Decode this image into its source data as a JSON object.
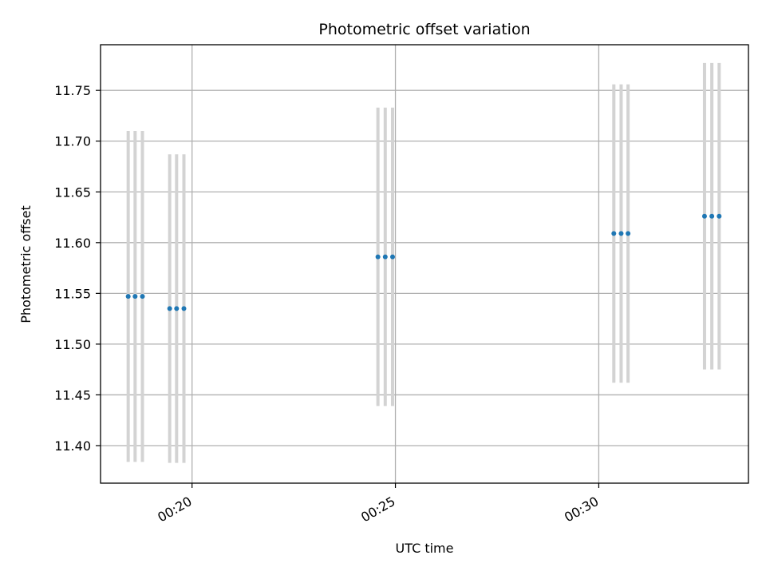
{
  "chart_data": {
    "type": "scatter",
    "title": "Photometric offset variation",
    "xlabel": "UTC time",
    "ylabel": "Photometric offset",
    "grid": true,
    "x_unit": "minutes after 00:00 UTC",
    "xlim": [
      17.75,
      33.68
    ],
    "ylim": [
      11.363,
      11.795
    ],
    "xticks": [
      {
        "value": 20,
        "label": "00:20"
      },
      {
        "value": 25,
        "label": "00:25"
      },
      {
        "value": 30,
        "label": "00:30"
      }
    ],
    "yticks": [
      {
        "value": 11.4,
        "label": "11.40"
      },
      {
        "value": 11.45,
        "label": "11.45"
      },
      {
        "value": 11.5,
        "label": "11.50"
      },
      {
        "value": 11.55,
        "label": "11.55"
      },
      {
        "value": 11.6,
        "label": "11.60"
      },
      {
        "value": 11.65,
        "label": "11.65"
      },
      {
        "value": 11.7,
        "label": "11.70"
      },
      {
        "value": 11.75,
        "label": "11.75"
      }
    ],
    "point_color": "#1f77b4",
    "errorbar_color": "#d3d3d3",
    "points": [
      {
        "x": 18.43,
        "y": 11.547,
        "yerr": 0.163
      },
      {
        "x": 18.6,
        "y": 11.547,
        "yerr": 0.163
      },
      {
        "x": 18.78,
        "y": 11.547,
        "yerr": 0.163
      },
      {
        "x": 19.45,
        "y": 11.535,
        "yerr": 0.152
      },
      {
        "x": 19.62,
        "y": 11.535,
        "yerr": 0.152
      },
      {
        "x": 19.8,
        "y": 11.535,
        "yerr": 0.152
      },
      {
        "x": 24.57,
        "y": 11.586,
        "yerr": 0.147
      },
      {
        "x": 24.75,
        "y": 11.586,
        "yerr": 0.147
      },
      {
        "x": 24.93,
        "y": 11.586,
        "yerr": 0.147
      },
      {
        "x": 30.37,
        "y": 11.609,
        "yerr": 0.147
      },
      {
        "x": 30.55,
        "y": 11.609,
        "yerr": 0.147
      },
      {
        "x": 30.72,
        "y": 11.609,
        "yerr": 0.147
      },
      {
        "x": 32.6,
        "y": 11.626,
        "yerr": 0.151
      },
      {
        "x": 32.78,
        "y": 11.626,
        "yerr": 0.151
      },
      {
        "x": 32.96,
        "y": 11.626,
        "yerr": 0.151
      }
    ]
  }
}
